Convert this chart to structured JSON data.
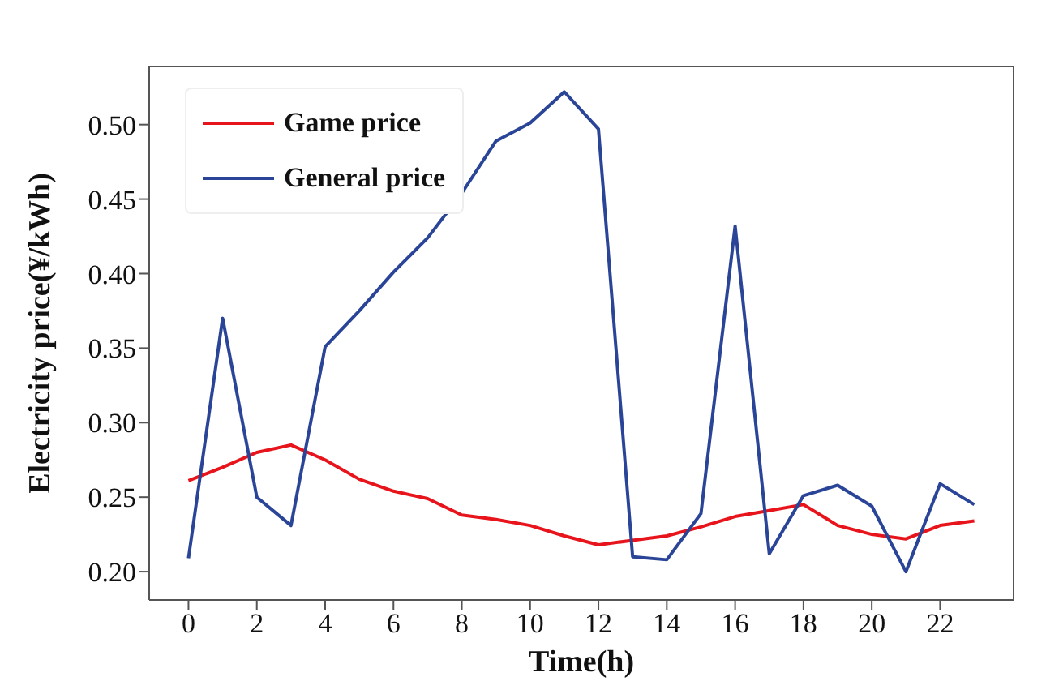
{
  "chart_data": {
    "type": "line",
    "xlabel": "Time(h)",
    "ylabel": "Electricity  price(¥/kWh)",
    "x": [
      0,
      1,
      2,
      3,
      4,
      5,
      6,
      7,
      8,
      9,
      10,
      11,
      12,
      13,
      14,
      15,
      16,
      17,
      18,
      19,
      20,
      21,
      22,
      23
    ],
    "series": [
      {
        "name": "Game price",
        "color": "#e8141b",
        "values": [
          0.261,
          0.27,
          0.28,
          0.285,
          0.275,
          0.262,
          0.254,
          0.249,
          0.238,
          0.235,
          0.231,
          0.224,
          0.218,
          0.221,
          0.224,
          0.23,
          0.237,
          0.241,
          0.245,
          0.231,
          0.225,
          0.222,
          0.231,
          0.234
        ]
      },
      {
        "name": "General price",
        "color": "#2a4598",
        "values": [
          0.209,
          0.37,
          0.25,
          0.231,
          0.351,
          0.375,
          0.401,
          0.424,
          0.454,
          0.489,
          0.501,
          0.522,
          0.497,
          0.21,
          0.208,
          0.239,
          0.432,
          0.212,
          0.251,
          0.258,
          0.244,
          0.2,
          0.259,
          0.245
        ]
      }
    ],
    "xlim": [
      -1.15,
      24.15
    ],
    "xticks": [
      0,
      2,
      4,
      6,
      8,
      10,
      12,
      14,
      16,
      18,
      20,
      22
    ],
    "ylim": [
      0.181,
      0.539
    ],
    "yticks": [
      {
        "value": 0.2,
        "label": "0.20"
      },
      0.25,
      {
        "value": 0.3,
        "label": "0.30"
      },
      0.35,
      {
        "value": 0.4,
        "label": "0.40"
      },
      0.45,
      {
        "value": 0.5,
        "label": "0.50"
      }
    ],
    "legend": "top left",
    "grid": false
  }
}
